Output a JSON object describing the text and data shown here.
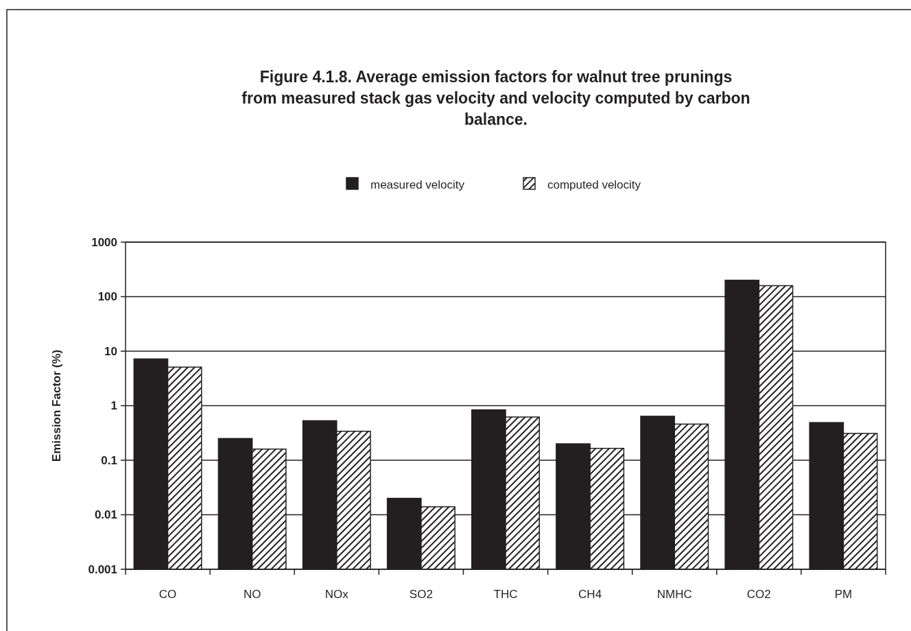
{
  "chart_data": {
    "type": "bar",
    "title": "Figure 4.1.8.  Average emission factors for walnut tree prunings from measured stack gas velocity and velocity computed by carbon balance.",
    "ylabel": "Emission Factor (%)",
    "categories": [
      "CO",
      "NO",
      "NOx",
      "SO2",
      "THC",
      "CH4",
      "NMHC",
      "CO2",
      "PM"
    ],
    "series": [
      {
        "name": "measured velocity",
        "color": "#231f20",
        "values": [
          7.2,
          0.25,
          0.53,
          0.02,
          0.84,
          0.2,
          0.64,
          200,
          0.49
        ]
      },
      {
        "name": "computed velocity",
        "color": "#231f20",
        "values": [
          5.1,
          0.16,
          0.34,
          0.014,
          0.62,
          0.165,
          0.46,
          159,
          0.31
        ]
      }
    ],
    "log": true,
    "ylim": [
      0.001,
      1000
    ],
    "yticks": [
      0.001,
      0.01,
      0.1,
      1,
      10,
      100,
      1000
    ],
    "grid": "y",
    "legend": "top"
  }
}
